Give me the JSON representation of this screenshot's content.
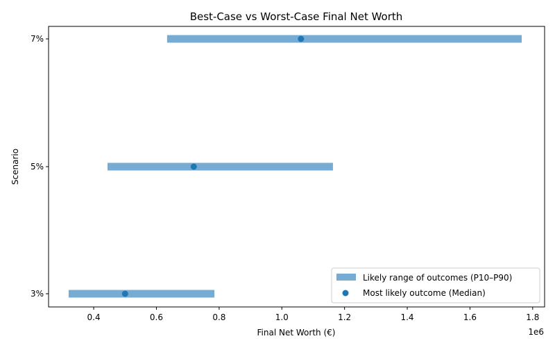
{
  "chart_data": {
    "type": "range-dot",
    "title": "Best-Case vs Worst-Case Final Net Worth",
    "xlabel": "Final Net Worth (€)",
    "ylabel": "Scenario",
    "x_offset_label": "1e6",
    "xlim": [
      0.256,
      1.838
    ],
    "x_scale_factor": 1000000,
    "xticks": [
      0.4,
      0.6,
      0.8,
      1.0,
      1.2,
      1.4,
      1.6,
      1.8
    ],
    "xtick_labels": [
      "0.4",
      "0.6",
      "0.8",
      "1.0",
      "1.2",
      "1.4",
      "1.6",
      "1.8"
    ],
    "categories": [
      "3%",
      "5%",
      "7%"
    ],
    "series": [
      {
        "name": "Likely range of outcomes (P10–P90)",
        "kind": "range",
        "color": "#76acd3",
        "low": [
          0.32,
          0.444,
          0.634
        ],
        "high": [
          0.785,
          1.163,
          1.765
        ]
      },
      {
        "name": "Most likely outcome (Median)",
        "kind": "scatter",
        "color": "#1f77b4",
        "values": [
          0.5,
          0.719,
          1.061
        ]
      }
    ],
    "legend": "lower-right",
    "grid": false
  }
}
